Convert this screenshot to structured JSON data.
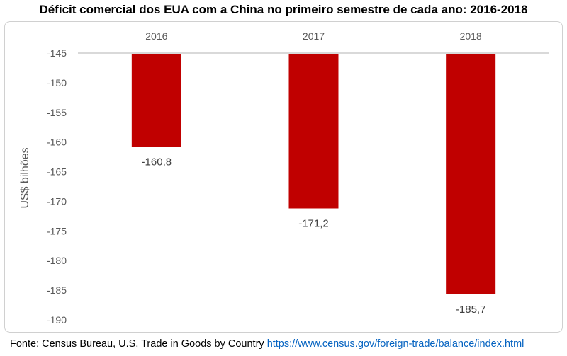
{
  "title": "Déficit comercial dos EUA com a China no primeiro semestre de cada ano: 2016-2018",
  "source": {
    "label": "Fonte: Census Bureau, U.S. Trade in Goods by Country",
    "url_text": "https://www.census.gov/foreign-trade/balance/index.html"
  },
  "chart_data": {
    "type": "bar",
    "categories": [
      "2016",
      "2017",
      "2018"
    ],
    "values": [
      -160.8,
      -171.2,
      -185.7
    ],
    "data_labels": [
      "-160,8",
      "-171,2",
      "-185,7"
    ],
    "ylabel": "US$ bilhões",
    "xlabel": "",
    "ylim": [
      -190,
      -145
    ],
    "yticks": [
      -145,
      -150,
      -155,
      -160,
      -165,
      -170,
      -175,
      -180,
      -185,
      -190
    ],
    "x_axis_position": "top",
    "grid": false,
    "bar_color": "#c00000",
    "axis_color": "#d9d9d9"
  }
}
